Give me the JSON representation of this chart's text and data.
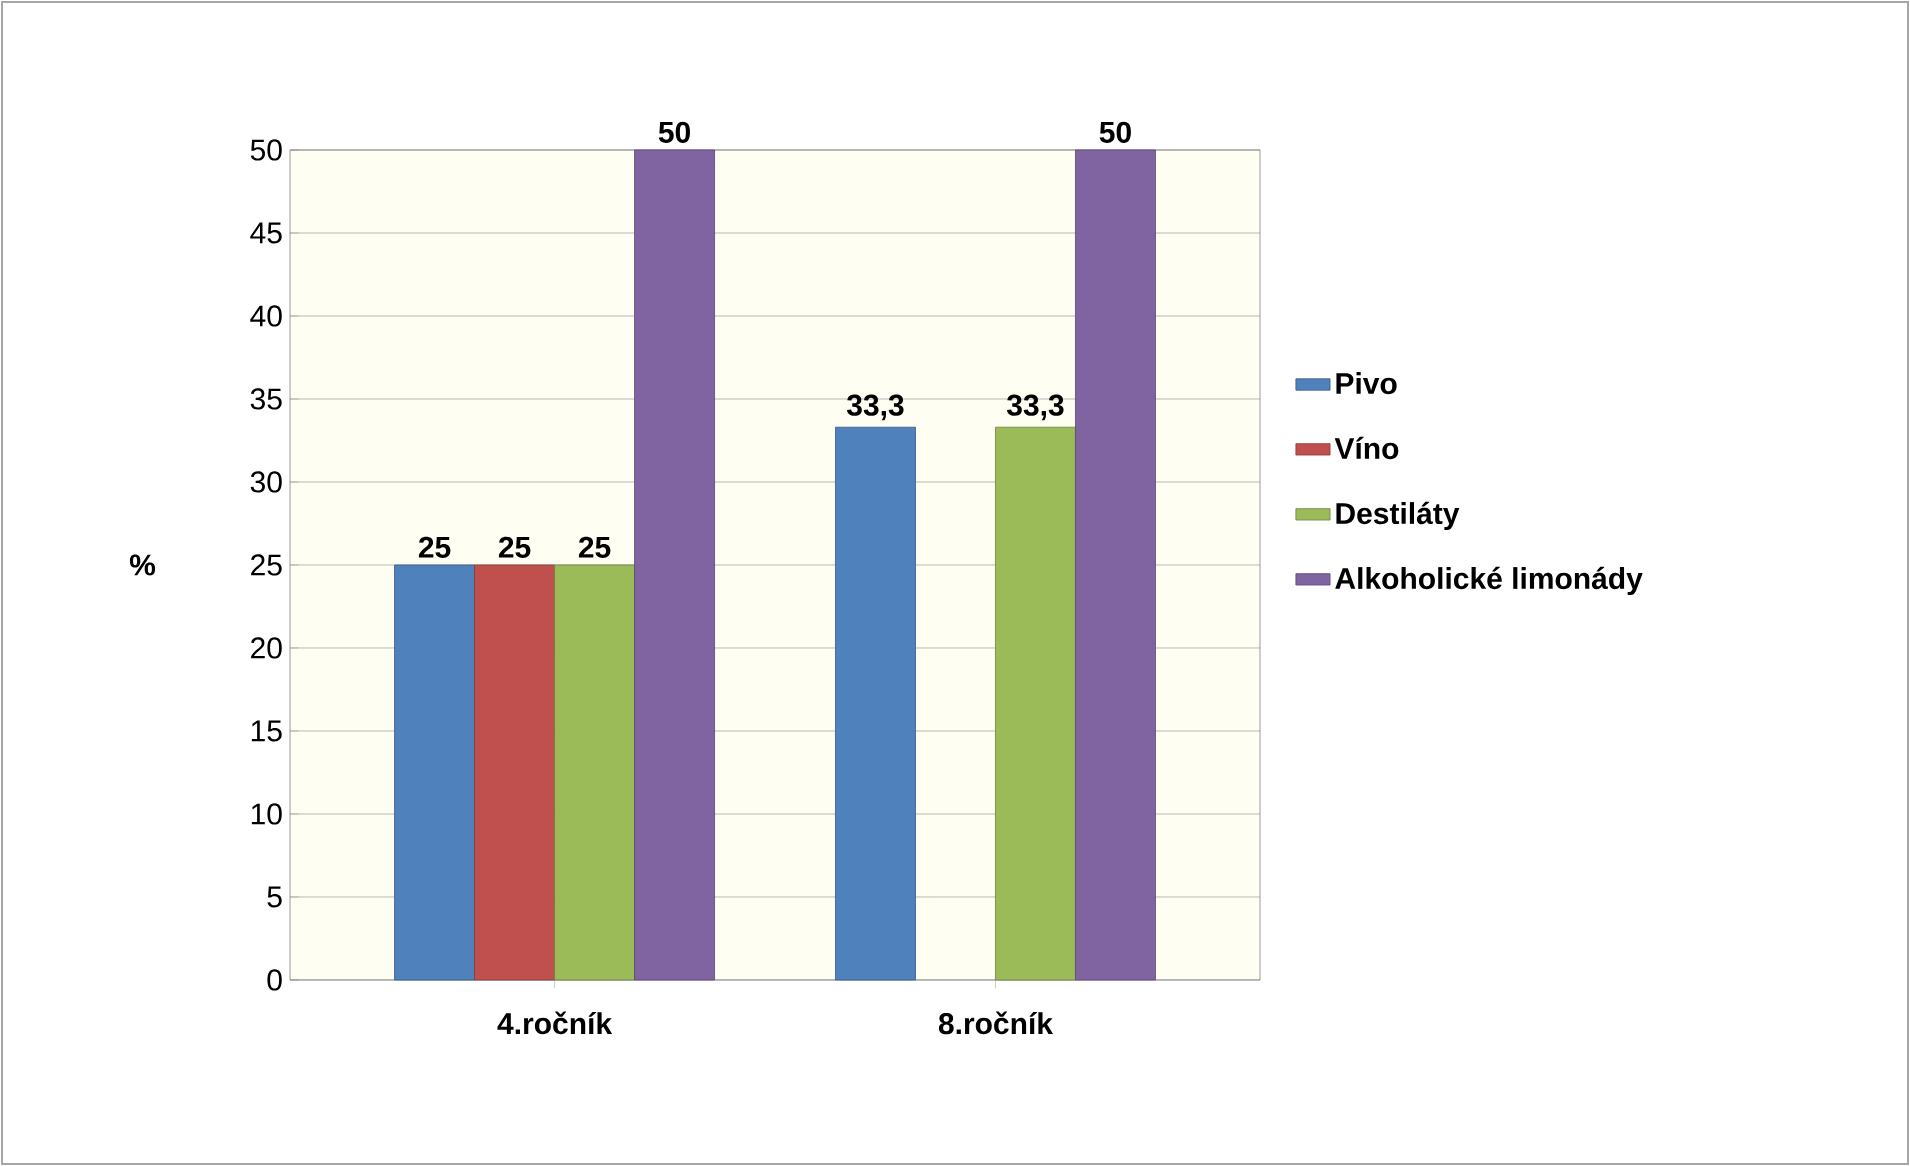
{
  "chart_data": {
    "type": "bar",
    "ylabel": "%",
    "categories": [
      "4.ročník",
      "8.ročník"
    ],
    "series": [
      {
        "name": "Pivo",
        "color": "#4f81bd",
        "values": [
          25,
          33.3
        ],
        "value_labels": [
          "25",
          "33,3"
        ]
      },
      {
        "name": "Víno",
        "color": "#c0504d",
        "values": [
          25,
          null
        ],
        "value_labels": [
          "25",
          null
        ]
      },
      {
        "name": "Destiláty",
        "color": "#9bbb59",
        "values": [
          25,
          33.3
        ],
        "value_labels": [
          "25",
          "33,3"
        ]
      },
      {
        "name": "Alkoholické limonády",
        "color": "#8064a2",
        "values": [
          50,
          50
        ],
        "value_labels": [
          "50",
          "50"
        ]
      }
    ],
    "ylim": [
      0,
      50
    ],
    "yticks": [
      0,
      5,
      10,
      15,
      20,
      25,
      30,
      35,
      40,
      45,
      50
    ],
    "grid": "y",
    "legend": "right"
  }
}
